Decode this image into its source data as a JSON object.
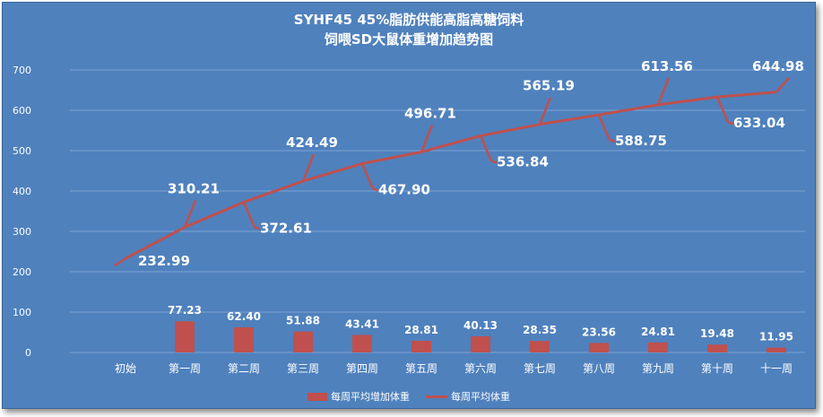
{
  "chart_data": {
    "type": "bar+line",
    "title": "SYHF45 45%脂肪供能高脂高糖饲料",
    "subtitle": "饲喂SD大鼠体重增加趋势图",
    "categories": [
      "初始",
      "第一周",
      "第二周",
      "第三周",
      "第四周",
      "第五周",
      "第六周",
      "第七周",
      "第八周",
      "第九周",
      "第十周",
      "十一周"
    ],
    "ylim": [
      0,
      700
    ],
    "yticks": [
      "0",
      "100",
      "200",
      "300",
      "400",
      "500",
      "600",
      "700"
    ],
    "grid": true,
    "legend_position": "bottom",
    "series": [
      {
        "name": "每周平均增加体重",
        "type": "bar",
        "values": [
          null,
          77.23,
          62.4,
          51.88,
          43.41,
          28.81,
          40.13,
          28.35,
          23.56,
          24.81,
          19.48,
          11.95
        ],
        "labels": [
          "",
          "77.23",
          "62.40",
          "51.88",
          "43.41",
          "28.81",
          "40.13",
          "28.35",
          "23.56",
          "24.81",
          "19.48",
          "11.95"
        ]
      },
      {
        "name": "每周平均体重",
        "type": "line",
        "values": [
          232.99,
          310.21,
          372.61,
          424.49,
          467.9,
          496.71,
          536.84,
          565.19,
          588.75,
          613.56,
          633.04,
          644.98
        ],
        "labels": [
          "232.99",
          "310.21",
          "372.61",
          "424.49",
          "467.90",
          "496.71",
          "536.84",
          "565.19",
          "588.75",
          "613.56",
          "633.04",
          "644.98"
        ]
      }
    ],
    "colors": {
      "background": "#4f81bd",
      "series": "#c0504d",
      "grid": "#7ea3d1",
      "text": "#ffffff"
    }
  }
}
